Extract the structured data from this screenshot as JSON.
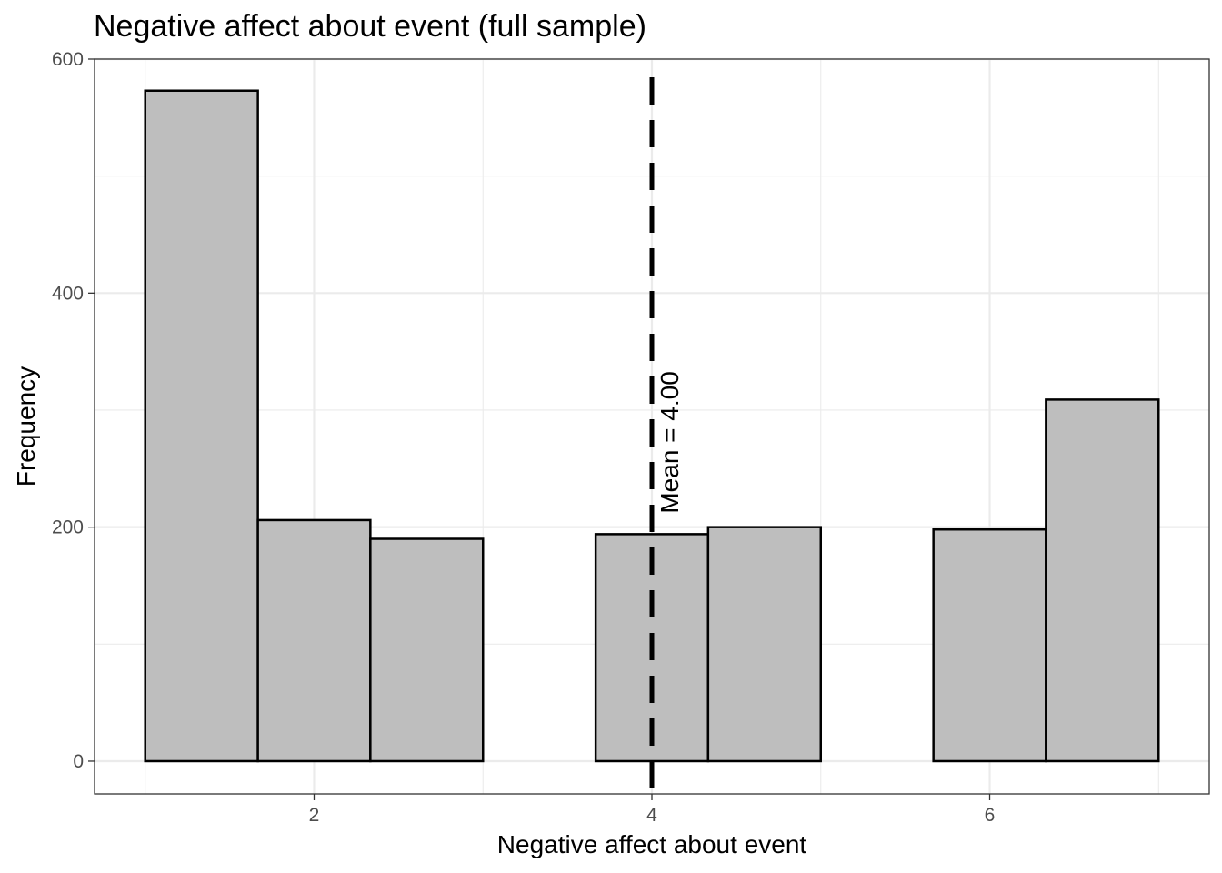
{
  "chart_data": {
    "type": "bar",
    "title": "Negative affect about event (full sample)",
    "xlabel": "Negative affect about event",
    "ylabel": "Frequency",
    "xlim": [
      0.7,
      7.3
    ],
    "ylim": [
      -28,
      600
    ],
    "x_ticks": [
      2,
      4,
      6
    ],
    "y_ticks": [
      0,
      200,
      400,
      600
    ],
    "x_minor_grid": [
      1,
      3,
      5,
      7
    ],
    "y_minor_grid": [
      100,
      300,
      500
    ],
    "bins": [
      {
        "x0": 1.0,
        "x1": 1.667,
        "count": 573
      },
      {
        "x0": 1.667,
        "x1": 2.333,
        "count": 206
      },
      {
        "x0": 2.333,
        "x1": 3.0,
        "count": 190
      },
      {
        "x0": 3.0,
        "x1": 3.667,
        "count": 0
      },
      {
        "x0": 3.667,
        "x1": 4.333,
        "count": 194
      },
      {
        "x0": 4.333,
        "x1": 5.0,
        "count": 200
      },
      {
        "x0": 5.0,
        "x1": 5.667,
        "count": 0
      },
      {
        "x0": 5.667,
        "x1": 6.333,
        "count": 198
      },
      {
        "x0": 6.333,
        "x1": 7.0,
        "count": 309
      }
    ],
    "mean": 4.0,
    "mean_label": "Mean = 4.00",
    "grid": true,
    "colors": {
      "bar_fill": "#bebebe",
      "bar_stroke": "#000000",
      "grid": "#ebebeb",
      "panel_border": "#333333",
      "mean_line": "#000000"
    }
  }
}
